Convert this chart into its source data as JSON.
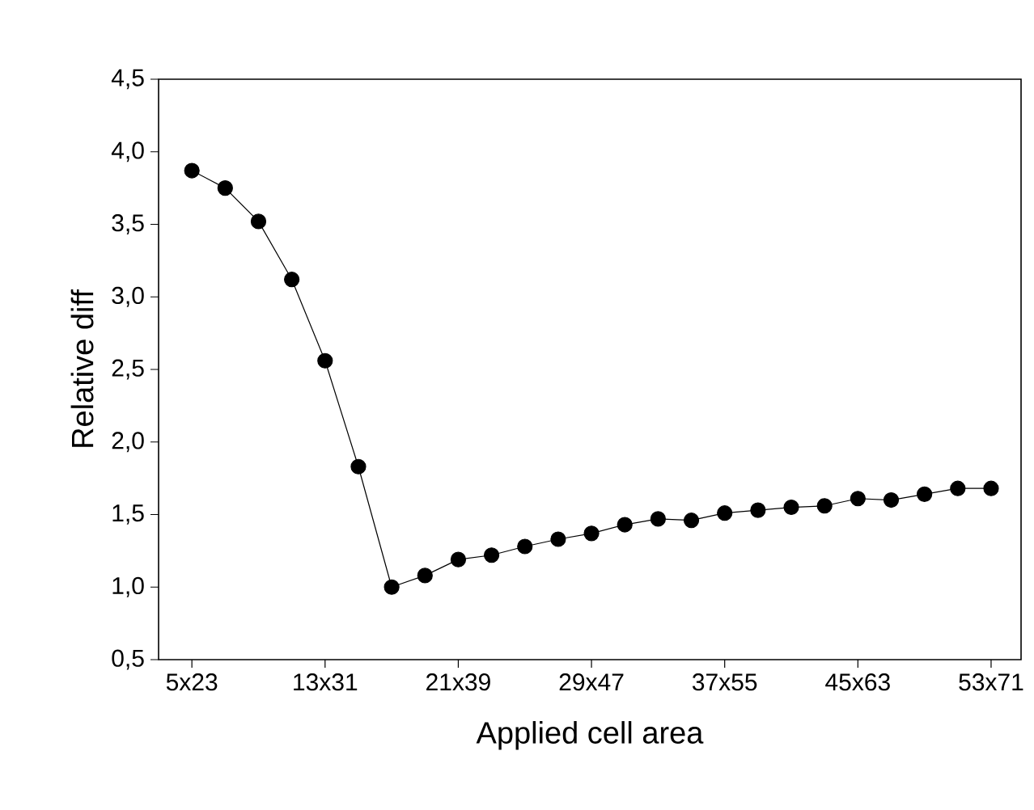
{
  "chart_data": {
    "type": "line",
    "xlabel": "Applied cell area",
    "ylabel": "Relative diff",
    "categories": [
      "5x23",
      null,
      null,
      null,
      "13x31",
      null,
      null,
      null,
      "21x39",
      null,
      null,
      null,
      "29x47",
      null,
      null,
      null,
      "37x55",
      null,
      null,
      null,
      "45x63",
      null,
      null,
      null,
      "53x71"
    ],
    "values": [
      3.87,
      3.75,
      3.52,
      3.12,
      2.56,
      1.83,
      1.0,
      1.08,
      1.19,
      1.22,
      1.28,
      1.33,
      1.37,
      1.43,
      1.47,
      1.46,
      1.51,
      1.53,
      1.55,
      1.56,
      1.61,
      1.6,
      1.64,
      1.68,
      1.68
    ],
    "color": "#000000",
    "marker": "circle",
    "line_style": "solid",
    "grid": false,
    "ylim": [
      0.5,
      4.5
    ],
    "yticks": [
      {
        "value": 0.5,
        "label": "0,5"
      },
      {
        "value": 1.0,
        "label": "1,0"
      },
      {
        "value": 1.5,
        "label": "1,5"
      },
      {
        "value": 2.0,
        "label": "2,0"
      },
      {
        "value": 2.5,
        "label": "2,5"
      },
      {
        "value": 3.0,
        "label": "3,0"
      },
      {
        "value": 3.5,
        "label": "3,5"
      },
      {
        "value": 4.0,
        "label": "4,0"
      },
      {
        "value": 4.5,
        "label": "4,5"
      }
    ]
  }
}
